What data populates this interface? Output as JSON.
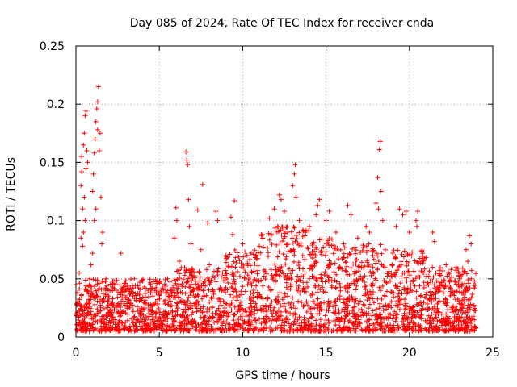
{
  "chart_data": {
    "type": "scatter",
    "title": "Day 085 of 2024, Rate Of TEC Index for receiver cnda",
    "xlabel": "GPS time / hours",
    "ylabel": "ROTI / TECUs",
    "xlim": [
      0,
      25
    ],
    "ylim": [
      0,
      0.25
    ],
    "xticks": [
      0,
      5,
      10,
      15,
      20,
      25
    ],
    "xtick_labels": [
      "0",
      "5",
      "10",
      "15",
      "20",
      "25"
    ],
    "yticks": [
      0,
      0.05,
      0.1,
      0.15,
      0.2,
      0.25
    ],
    "ytick_labels": [
      "0",
      "0.05",
      "0.1",
      "0.15",
      "0.2",
      "0.25"
    ],
    "grid": true,
    "marker": "+",
    "color": "#ff0000",
    "series": [
      {
        "name": "ROTI",
        "description_points": "sampled representative points [hour, ROTI]",
        "points": [
          [
            0.3,
            0.13
          ],
          [
            0.35,
            0.142
          ],
          [
            0.45,
            0.165
          ],
          [
            0.5,
            0.175
          ],
          [
            0.55,
            0.19
          ],
          [
            0.6,
            0.194
          ],
          [
            0.65,
            0.16
          ],
          [
            0.4,
            0.11
          ],
          [
            0.5,
            0.12
          ],
          [
            0.45,
            0.09
          ],
          [
            0.55,
            0.1
          ],
          [
            0.6,
            0.145
          ],
          [
            0.3,
            0.085
          ],
          [
            0.4,
            0.078
          ],
          [
            0.35,
            0.155
          ],
          [
            0.7,
            0.15
          ],
          [
            1.0,
            0.125
          ],
          [
            1.05,
            0.14
          ],
          [
            1.1,
            0.158
          ],
          [
            1.15,
            0.17
          ],
          [
            1.2,
            0.185
          ],
          [
            1.25,
            0.196
          ],
          [
            1.3,
            0.202
          ],
          [
            1.35,
            0.215
          ],
          [
            1.3,
            0.178
          ],
          [
            1.4,
            0.16
          ],
          [
            1.45,
            0.175
          ],
          [
            1.2,
            0.11
          ],
          [
            1.1,
            0.1
          ],
          [
            1.5,
            0.12
          ],
          [
            1.55,
            0.08
          ],
          [
            1.0,
            0.072
          ],
          [
            0.9,
            0.062
          ],
          [
            1.6,
            0.09
          ],
          [
            2.7,
            0.072
          ],
          [
            0.2,
            0.055
          ],
          [
            6.0,
            0.111
          ],
          [
            6.05,
            0.1
          ],
          [
            5.9,
            0.085
          ],
          [
            6.2,
            0.065
          ],
          [
            6.6,
            0.159
          ],
          [
            6.65,
            0.152
          ],
          [
            6.7,
            0.148
          ],
          [
            6.75,
            0.118
          ],
          [
            6.8,
            0.095
          ],
          [
            6.9,
            0.08
          ],
          [
            7.3,
            0.109
          ],
          [
            7.5,
            0.075
          ],
          [
            7.6,
            0.131
          ],
          [
            7.9,
            0.098
          ],
          [
            8.4,
            0.108
          ],
          [
            8.5,
            0.1
          ],
          [
            9.0,
            0.07
          ],
          [
            9.3,
            0.103
          ],
          [
            9.5,
            0.117
          ],
          [
            9.4,
            0.088
          ],
          [
            10.0,
            0.08
          ],
          [
            11.2,
            0.088
          ],
          [
            11.6,
            0.102
          ],
          [
            11.9,
            0.11
          ],
          [
            12.2,
            0.122
          ],
          [
            12.3,
            0.118
          ],
          [
            12.5,
            0.108
          ],
          [
            12.1,
            0.095
          ],
          [
            12.7,
            0.09
          ],
          [
            13.1,
            0.14
          ],
          [
            13.15,
            0.148
          ],
          [
            13.0,
            0.13
          ],
          [
            13.2,
            0.12
          ],
          [
            13.4,
            0.1
          ],
          [
            14.0,
            0.095
          ],
          [
            14.6,
            0.118
          ],
          [
            14.5,
            0.113
          ],
          [
            14.4,
            0.105
          ],
          [
            15.0,
            0.1
          ],
          [
            15.2,
            0.108
          ],
          [
            15.6,
            0.09
          ],
          [
            16.5,
            0.105
          ],
          [
            16.3,
            0.113
          ],
          [
            16.9,
            0.085
          ],
          [
            17.4,
            0.095
          ],
          [
            17.6,
            0.09
          ],
          [
            18.0,
            0.115
          ],
          [
            18.1,
            0.137
          ],
          [
            18.2,
            0.161
          ],
          [
            18.25,
            0.168
          ],
          [
            18.3,
            0.125
          ],
          [
            18.15,
            0.11
          ],
          [
            18.4,
            0.1
          ],
          [
            19.2,
            0.095
          ],
          [
            19.4,
            0.11
          ],
          [
            19.6,
            0.105
          ],
          [
            19.8,
            0.108
          ],
          [
            20.0,
            0.09
          ],
          [
            20.4,
            0.1
          ],
          [
            20.5,
            0.108
          ],
          [
            20.45,
            0.095
          ],
          [
            21.4,
            0.09
          ],
          [
            21.5,
            0.082
          ],
          [
            22.2,
            0.062
          ],
          [
            22.5,
            0.058
          ],
          [
            23.4,
            0.075
          ],
          [
            23.6,
            0.087
          ],
          [
            23.7,
            0.08
          ],
          [
            23.5,
            0.065
          ],
          [
            22.8,
            0.06
          ],
          [
            0.0,
            0.045
          ],
          [
            0.1,
            0.038
          ],
          [
            1.8,
            0.05
          ],
          [
            2.2,
            0.045
          ],
          [
            3.0,
            0.04
          ],
          [
            3.5,
            0.05
          ],
          [
            4.0,
            0.048
          ],
          [
            4.5,
            0.042
          ],
          [
            5.0,
            0.047
          ],
          [
            5.5,
            0.05
          ],
          [
            7.0,
            0.058
          ],
          [
            8.0,
            0.062
          ],
          [
            9.0,
            0.055
          ],
          [
            10.5,
            0.072
          ],
          [
            11.0,
            0.078
          ],
          [
            13.6,
            0.07
          ],
          [
            14.2,
            0.068
          ],
          [
            15.8,
            0.06
          ],
          [
            16.8,
            0.066
          ],
          [
            17.8,
            0.07
          ],
          [
            19.0,
            0.072
          ],
          [
            20.8,
            0.065
          ],
          [
            21.8,
            0.055
          ],
          [
            23.0,
            0.05
          ],
          [
            23.9,
            0.048
          ],
          [
            12.0,
            0.02
          ],
          [
            12.3,
            0.018
          ],
          [
            12.6,
            0.022
          ],
          [
            14.6,
            0.005
          ],
          [
            15.0,
            0.008
          ],
          [
            6.0,
            0.006
          ],
          [
            2.0,
            0.006
          ],
          [
            20.0,
            0.007
          ]
        ]
      }
    ]
  }
}
